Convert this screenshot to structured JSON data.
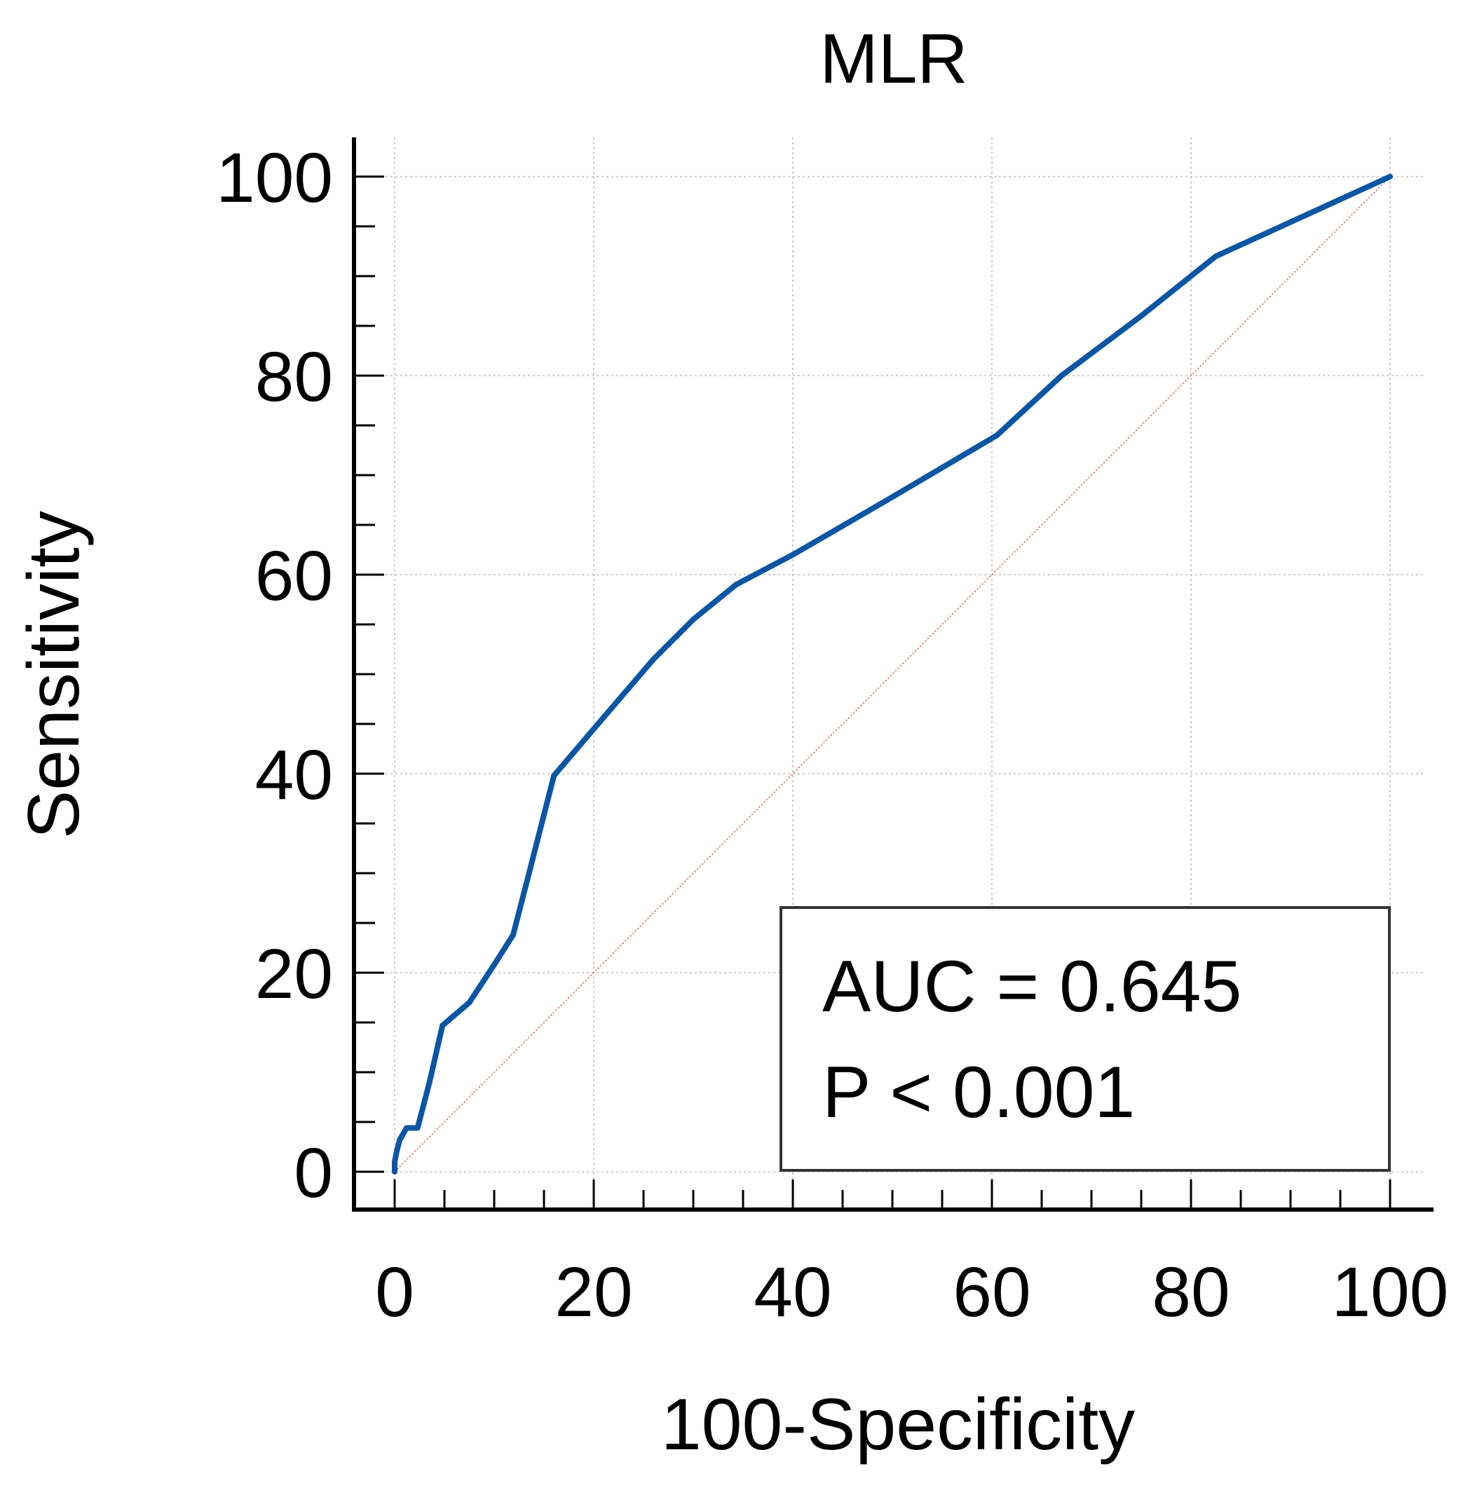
{
  "chart_data": {
    "type": "line",
    "title": "MLR",
    "xlabel": "100-Specificity",
    "ylabel": "Sensitivity",
    "xlim": [
      0,
      100
    ],
    "ylim": [
      0,
      100
    ],
    "x_ticks": [
      "0",
      "20",
      "40",
      "60",
      "80",
      "100"
    ],
    "y_ticks": [
      "0",
      "20",
      "40",
      "60",
      "80",
      "100"
    ],
    "grid": true,
    "series": [
      {
        "color": "#0b55a5",
        "x": [
          0,
          0,
          0.2,
          0.5,
          1.2,
          2.0,
          2.3,
          3.5,
          4.8,
          7.5,
          10.0,
          11.9,
          13.5,
          16.0,
          20.0,
          26.0,
          30.0,
          34.3,
          40.0,
          50.0,
          60.5,
          67.0,
          75.0,
          82.5,
          100
        ],
        "y": [
          0,
          1.0,
          2.0,
          3.2,
          4.4,
          4.4,
          4.4,
          9.0,
          14.7,
          17.0,
          20.8,
          23.8,
          30.0,
          39.8,
          44.5,
          51.5,
          55.5,
          59.0,
          62.0,
          67.8,
          74.0,
          80.0,
          86.0,
          92.0,
          100
        ]
      },
      {
        "color": "#e0504a",
        "style": "dotted",
        "x": [
          0,
          100
        ],
        "y": [
          0,
          100
        ]
      }
    ],
    "annotations": [
      "AUC = 0.645",
      "P < 0.001"
    ]
  }
}
